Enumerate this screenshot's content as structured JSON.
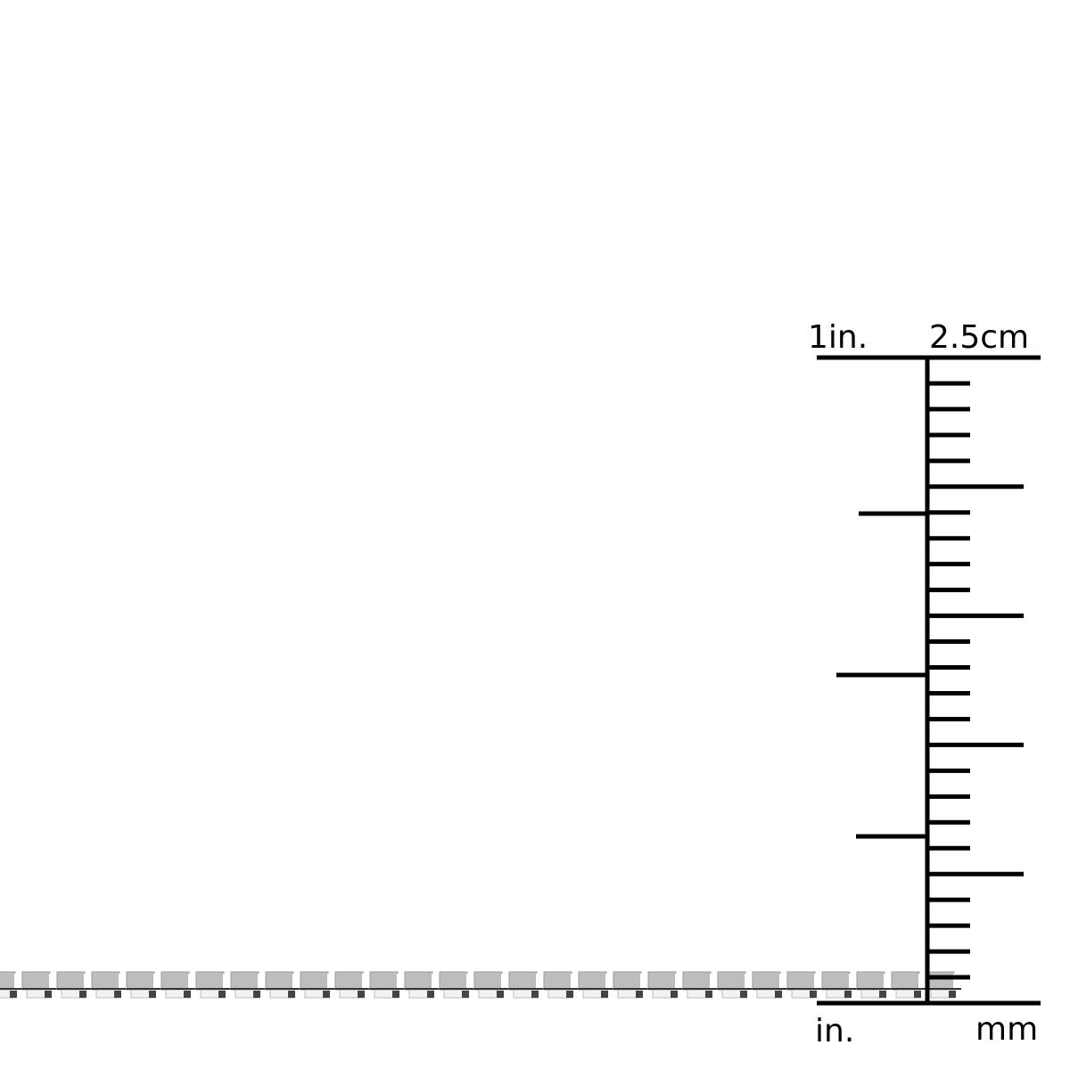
{
  "ruler": {
    "top_left_label": "1in.",
    "top_right_label": "2.5cm",
    "bottom_left_label": "in.",
    "bottom_right_label": "mm",
    "mm_total": 25,
    "inch_major_every_mm": 5,
    "inch_subdivisions": 4,
    "color": "#000000"
  },
  "chain": {
    "style": "box-chain",
    "color": "#b8b8b8"
  }
}
